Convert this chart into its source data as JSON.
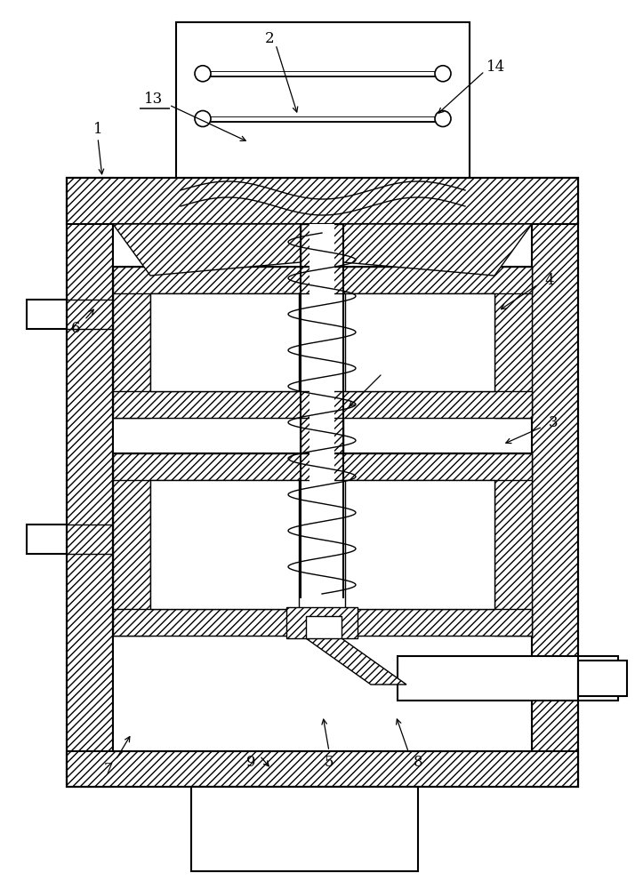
{
  "bg_color": "#ffffff",
  "fig_width": 7.23,
  "fig_height": 10.0,
  "dpi": 100
}
